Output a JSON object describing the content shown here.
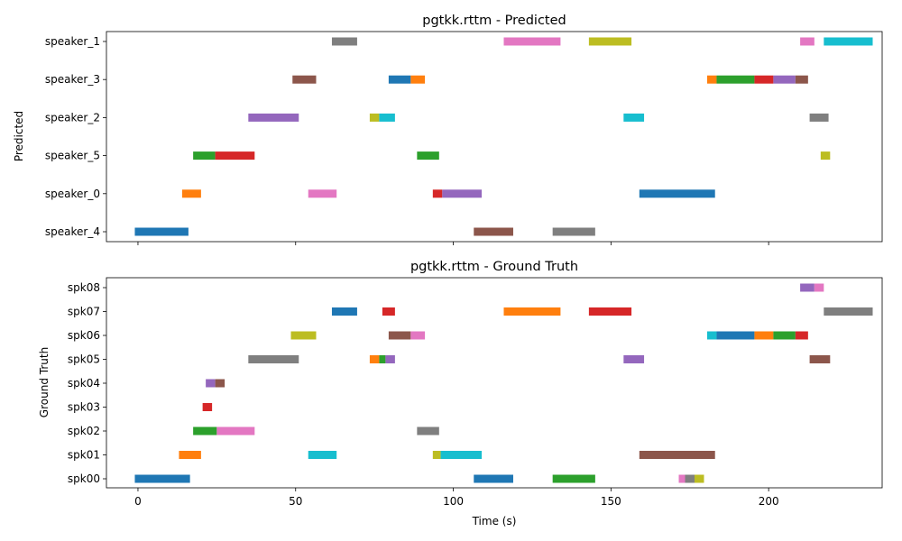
{
  "chart_data": [
    {
      "type": "timeline",
      "title": "pgtkk.rttm - Predicted",
      "xlabel": "",
      "ylabel": "Predicted",
      "xlim": [
        -10,
        236
      ],
      "xticks": [
        0,
        50,
        100,
        150,
        200
      ],
      "show_xtick_labels": false,
      "grid": false,
      "categories": [
        "speaker_4",
        "speaker_0",
        "speaker_5",
        "speaker_2",
        "speaker_3",
        "speaker_1"
      ],
      "segments": [
        {
          "row": "speaker_1",
          "start": 61.5,
          "end": 69.5,
          "color": "#7f7f7f"
        },
        {
          "row": "speaker_1",
          "start": 116,
          "end": 134,
          "color": "#e377c2"
        },
        {
          "row": "speaker_1",
          "start": 143,
          "end": 156.5,
          "color": "#bcbd22"
        },
        {
          "row": "speaker_1",
          "start": 210,
          "end": 214.5,
          "color": "#e377c2"
        },
        {
          "row": "speaker_1",
          "start": 217.5,
          "end": 233,
          "color": "#17becf"
        },
        {
          "row": "speaker_3",
          "start": 49,
          "end": 56.5,
          "color": "#8c564b"
        },
        {
          "row": "speaker_3",
          "start": 79.5,
          "end": 86.5,
          "color": "#1f77b4"
        },
        {
          "row": "speaker_3",
          "start": 86.5,
          "end": 91,
          "color": "#ff7f0e"
        },
        {
          "row": "speaker_3",
          "start": 180.5,
          "end": 183.5,
          "color": "#ff7f0e"
        },
        {
          "row": "speaker_3",
          "start": 183.5,
          "end": 195.5,
          "color": "#2ca02c"
        },
        {
          "row": "speaker_3",
          "start": 195.5,
          "end": 201.5,
          "color": "#d62728"
        },
        {
          "row": "speaker_3",
          "start": 201.5,
          "end": 208.5,
          "color": "#9467bd"
        },
        {
          "row": "speaker_3",
          "start": 208.5,
          "end": 212.5,
          "color": "#8c564b"
        },
        {
          "row": "speaker_2",
          "start": 35,
          "end": 51,
          "color": "#9467bd"
        },
        {
          "row": "speaker_2",
          "start": 73.5,
          "end": 76.5,
          "color": "#bcbd22"
        },
        {
          "row": "speaker_2",
          "start": 76.5,
          "end": 81.5,
          "color": "#17becf"
        },
        {
          "row": "speaker_2",
          "start": 154,
          "end": 160.5,
          "color": "#17becf"
        },
        {
          "row": "speaker_2",
          "start": 213,
          "end": 219,
          "color": "#7f7f7f"
        },
        {
          "row": "speaker_5",
          "start": 17.5,
          "end": 24.5,
          "color": "#2ca02c"
        },
        {
          "row": "speaker_5",
          "start": 24.5,
          "end": 37,
          "color": "#d62728"
        },
        {
          "row": "speaker_5",
          "start": 88.5,
          "end": 95.5,
          "color": "#2ca02c"
        },
        {
          "row": "speaker_5",
          "start": 216.5,
          "end": 219.5,
          "color": "#bcbd22"
        },
        {
          "row": "speaker_0",
          "start": 14,
          "end": 20,
          "color": "#ff7f0e"
        },
        {
          "row": "speaker_0",
          "start": 54,
          "end": 63,
          "color": "#e377c2"
        },
        {
          "row": "speaker_0",
          "start": 93.5,
          "end": 96.5,
          "color": "#d62728"
        },
        {
          "row": "speaker_0",
          "start": 96.5,
          "end": 109,
          "color": "#9467bd"
        },
        {
          "row": "speaker_0",
          "start": 159,
          "end": 183,
          "color": "#1f77b4"
        },
        {
          "row": "speaker_4",
          "start": -1,
          "end": 16,
          "color": "#1f77b4"
        },
        {
          "row": "speaker_4",
          "start": 106.5,
          "end": 119,
          "color": "#8c564b"
        },
        {
          "row": "speaker_4",
          "start": 131.5,
          "end": 145,
          "color": "#7f7f7f"
        }
      ]
    },
    {
      "type": "timeline",
      "title": "pgtkk.rttm - Ground Truth",
      "xlabel": "Time (s)",
      "ylabel": "Ground Truth",
      "xlim": [
        -10,
        236
      ],
      "xticks": [
        0,
        50,
        100,
        150,
        200
      ],
      "show_xtick_labels": true,
      "grid": false,
      "categories": [
        "spk00",
        "spk01",
        "spk02",
        "spk03",
        "spk04",
        "spk05",
        "spk06",
        "spk07",
        "spk08"
      ],
      "segments": [
        {
          "row": "spk08",
          "start": 210,
          "end": 214.5,
          "color": "#9467bd"
        },
        {
          "row": "spk08",
          "start": 214.5,
          "end": 217.5,
          "color": "#e377c2"
        },
        {
          "row": "spk07",
          "start": 61.5,
          "end": 69.5,
          "color": "#1f77b4"
        },
        {
          "row": "spk07",
          "start": 77.5,
          "end": 81.5,
          "color": "#d62728"
        },
        {
          "row": "spk07",
          "start": 116,
          "end": 134,
          "color": "#ff7f0e"
        },
        {
          "row": "spk07",
          "start": 143,
          "end": 156.5,
          "color": "#d62728"
        },
        {
          "row": "spk07",
          "start": 217.5,
          "end": 233,
          "color": "#7f7f7f"
        },
        {
          "row": "spk06",
          "start": 48.5,
          "end": 56.5,
          "color": "#bcbd22"
        },
        {
          "row": "spk06",
          "start": 79.5,
          "end": 86.5,
          "color": "#8c564b"
        },
        {
          "row": "spk06",
          "start": 86.5,
          "end": 91,
          "color": "#e377c2"
        },
        {
          "row": "spk06",
          "start": 180.5,
          "end": 183.5,
          "color": "#17becf"
        },
        {
          "row": "spk06",
          "start": 183.5,
          "end": 195.5,
          "color": "#1f77b4"
        },
        {
          "row": "spk06",
          "start": 195.5,
          "end": 201.5,
          "color": "#ff7f0e"
        },
        {
          "row": "spk06",
          "start": 201.5,
          "end": 208.5,
          "color": "#2ca02c"
        },
        {
          "row": "spk06",
          "start": 208.5,
          "end": 212.5,
          "color": "#d62728"
        },
        {
          "row": "spk05",
          "start": 35,
          "end": 51,
          "color": "#7f7f7f"
        },
        {
          "row": "spk05",
          "start": 73.5,
          "end": 76.5,
          "color": "#ff7f0e"
        },
        {
          "row": "spk05",
          "start": 76.5,
          "end": 78.5,
          "color": "#2ca02c"
        },
        {
          "row": "spk05",
          "start": 78.5,
          "end": 81.5,
          "color": "#9467bd"
        },
        {
          "row": "spk05",
          "start": 154,
          "end": 160.5,
          "color": "#9467bd"
        },
        {
          "row": "spk05",
          "start": 213,
          "end": 219.5,
          "color": "#8c564b"
        },
        {
          "row": "spk04",
          "start": 21.5,
          "end": 24.5,
          "color": "#9467bd"
        },
        {
          "row": "spk04",
          "start": 24.5,
          "end": 27.5,
          "color": "#8c564b"
        },
        {
          "row": "spk03",
          "start": 20.5,
          "end": 23.5,
          "color": "#d62728"
        },
        {
          "row": "spk02",
          "start": 17.5,
          "end": 25,
          "color": "#2ca02c"
        },
        {
          "row": "spk02",
          "start": 25,
          "end": 37,
          "color": "#e377c2"
        },
        {
          "row": "spk02",
          "start": 88.5,
          "end": 95.5,
          "color": "#7f7f7f"
        },
        {
          "row": "spk01",
          "start": 13,
          "end": 20,
          "color": "#ff7f0e"
        },
        {
          "row": "spk01",
          "start": 54,
          "end": 63,
          "color": "#17becf"
        },
        {
          "row": "spk01",
          "start": 93.5,
          "end": 96,
          "color": "#bcbd22"
        },
        {
          "row": "spk01",
          "start": 96,
          "end": 109,
          "color": "#17becf"
        },
        {
          "row": "spk01",
          "start": 159,
          "end": 183,
          "color": "#8c564b"
        },
        {
          "row": "spk00",
          "start": -1,
          "end": 16.5,
          "color": "#1f77b4"
        },
        {
          "row": "spk00",
          "start": 106.5,
          "end": 119,
          "color": "#1f77b4"
        },
        {
          "row": "spk00",
          "start": 131.5,
          "end": 145,
          "color": "#2ca02c"
        },
        {
          "row": "spk00",
          "start": 171.5,
          "end": 173.5,
          "color": "#e377c2"
        },
        {
          "row": "spk00",
          "start": 173.5,
          "end": 176.5,
          "color": "#7f7f7f"
        },
        {
          "row": "spk00",
          "start": 176.5,
          "end": 179.5,
          "color": "#bcbd22"
        }
      ]
    }
  ]
}
